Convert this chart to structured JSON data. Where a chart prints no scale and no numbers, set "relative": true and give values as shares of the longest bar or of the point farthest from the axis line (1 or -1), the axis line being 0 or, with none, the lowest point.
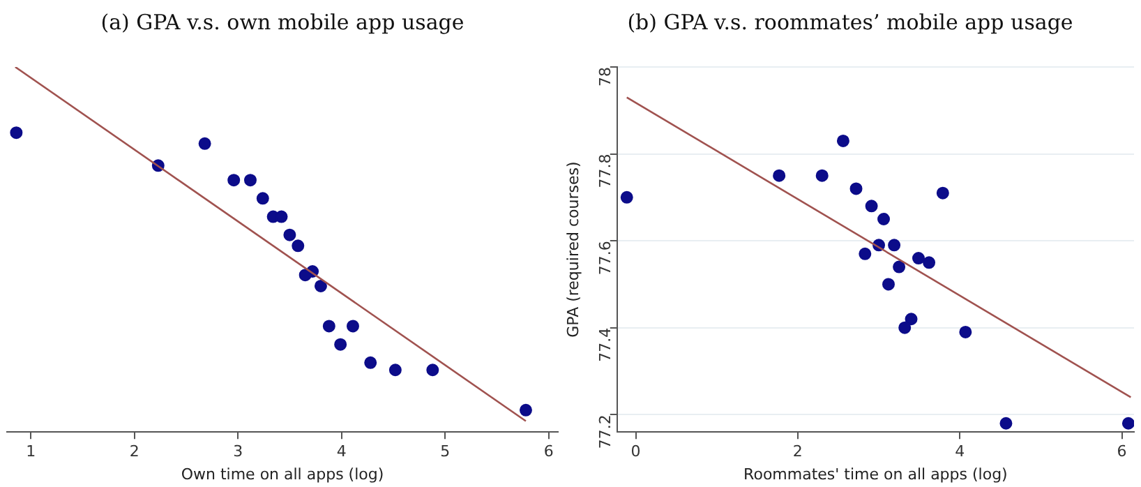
{
  "chart_data": [
    {
      "type": "scatter",
      "title": "(a) GPA v.s. own mobile app usage",
      "xlabel": "Own time on all apps (log)",
      "relative": true,
      "xlim": [
        0.77,
        6.09
      ],
      "xticks": [
        1,
        2,
        3,
        4,
        5,
        6
      ],
      "grid": false,
      "legend": false,
      "series": [
        {
          "marker": "circle",
          "color": "#0c0c8a",
          "x": [
            0.86,
            2.23,
            2.68,
            2.96,
            3.12,
            3.24,
            3.34,
            3.42,
            3.5,
            3.58,
            3.72,
            3.65,
            3.8,
            3.88,
            4.11,
            3.99,
            4.28,
            4.52,
            4.88,
            5.78
          ],
          "values": [
            0.82,
            0.73,
            0.79,
            0.69,
            0.69,
            0.64,
            0.59,
            0.59,
            0.54,
            0.51,
            0.44,
            0.43,
            0.4,
            0.29,
            0.29,
            0.24,
            0.19,
            0.17,
            0.17,
            0.06
          ]
        },
        {
          "type": "line",
          "marker": "none",
          "color": "#a0524f",
          "x": [
            0.85,
            5.78
          ],
          "values": [
            1,
            0.03
          ]
        }
      ]
    },
    {
      "type": "scatter",
      "title": "(b) GPA v.s. roommates’ mobile app usage",
      "xlabel": "Roommates' time on all apps (log)",
      "ylabel": "GPA (required courses)",
      "xlim": [
        -0.23,
        6.15
      ],
      "ylim": [
        77.16,
        78
      ],
      "xticks": [
        0,
        2,
        4,
        6
      ],
      "yticks": [
        77.2,
        77.4,
        77.6,
        77.8,
        78
      ],
      "grid": "y",
      "legend": false,
      "series": [
        {
          "marker": "circle",
          "color": "#0c0c8a",
          "x": [
            -0.11,
            1.77,
            2.3,
            2.56,
            2.72,
            2.91,
            3.06,
            3.0,
            3.19,
            2.83,
            3.25,
            3.49,
            3.62,
            3.12,
            3.79,
            3.4,
            3.32,
            4.07,
            4.57,
            6.08
          ],
          "values": [
            77.7,
            77.75,
            77.75,
            77.83,
            77.72,
            77.68,
            77.65,
            77.59,
            77.59,
            77.57,
            77.54,
            77.56,
            77.55,
            77.5,
            77.71,
            77.42,
            77.4,
            77.39,
            77.18,
            77.18
          ]
        },
        {
          "type": "line",
          "marker": "none",
          "color": "#a0524f",
          "x": [
            -0.11,
            6.11
          ],
          "values": [
            77.93,
            77.24
          ]
        }
      ]
    }
  ]
}
